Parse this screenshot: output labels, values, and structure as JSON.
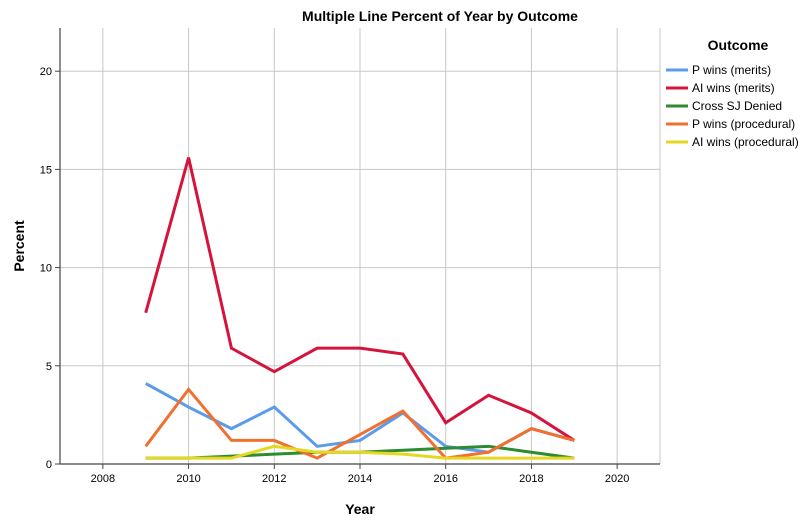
{
  "chart_data": {
    "type": "line",
    "title": "Multiple Line Percent of Year by Outcome",
    "xlabel": "Year",
    "ylabel": "Percent",
    "xlim": [
      2007,
      2021
    ],
    "ylim": [
      0,
      22.2
    ],
    "x_ticks": [
      2008,
      2010,
      2012,
      2014,
      2016,
      2018,
      2020
    ],
    "y_ticks": [
      0,
      5,
      10,
      15,
      20
    ],
    "grid": true,
    "legend": {
      "title": "Outcome",
      "placement": "right"
    },
    "x": [
      2009,
      2010,
      2011,
      2012,
      2013,
      2014,
      2015,
      2016,
      2017,
      2018,
      2019
    ],
    "series": [
      {
        "name": "P wins (merits)",
        "color": "#5b9be8",
        "values": [
          4.1,
          2.9,
          1.8,
          2.9,
          0.9,
          1.2,
          2.6,
          0.9,
          0.6,
          1.8,
          1.2
        ]
      },
      {
        "name": "AI wins (merits)",
        "color": "#d4143c",
        "values": [
          7.7,
          15.6,
          5.9,
          4.7,
          5.9,
          5.9,
          5.6,
          2.1,
          3.5,
          2.6,
          1.2
        ]
      },
      {
        "name": "Cross SJ Denied",
        "color": "#2e8b2e",
        "values": [
          0.3,
          0.3,
          0.4,
          0.5,
          0.6,
          0.6,
          0.7,
          0.8,
          0.9,
          0.6,
          0.3
        ]
      },
      {
        "name": "P wins (procedural)",
        "color": "#f07030",
        "values": [
          0.9,
          3.8,
          1.2,
          1.2,
          0.3,
          1.5,
          2.7,
          0.3,
          0.6,
          1.8,
          1.2
        ]
      },
      {
        "name": "AI wins (procedural)",
        "color": "#e6d820",
        "values": [
          0.3,
          0.3,
          0.3,
          0.9,
          0.6,
          0.6,
          0.5,
          0.3,
          0.3,
          0.3,
          0.3
        ]
      }
    ]
  }
}
